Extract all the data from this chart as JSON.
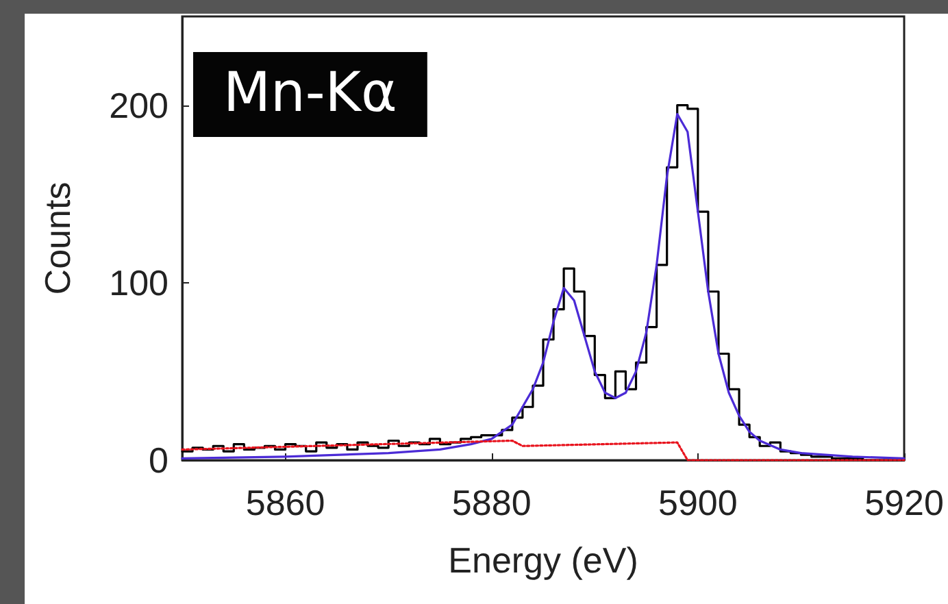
{
  "chart_data": {
    "type": "line",
    "xlabel": "Energy (eV)",
    "ylabel": "Counts",
    "annotations": [
      "Mn-Kα"
    ],
    "xlim": [
      5850,
      5920
    ],
    "xticks": [
      5860,
      5880,
      5900,
      5920
    ],
    "ylim": [
      0,
      250
    ],
    "yticks": [
      0,
      100,
      200
    ],
    "grid": false,
    "series": [
      {
        "type": "step",
        "color": "#000000",
        "line_style": "solid",
        "x": [
          5850,
          5851,
          5852,
          5853,
          5854,
          5855,
          5856,
          5857,
          5858,
          5859,
          5860,
          5861,
          5862,
          5863,
          5864,
          5865,
          5866,
          5867,
          5868,
          5869,
          5870,
          5871,
          5872,
          5873,
          5874,
          5875,
          5876,
          5877,
          5878,
          5879,
          5880,
          5881,
          5882,
          5883,
          5884,
          5885,
          5886,
          5887,
          5888,
          5889,
          5890,
          5891,
          5892,
          5893,
          5894,
          5895,
          5896,
          5897,
          5898,
          5899,
          5900,
          5901,
          5902,
          5903,
          5904,
          5905,
          5906,
          5907,
          5908,
          5909,
          5910,
          5911,
          5912,
          5913,
          5914,
          5915,
          5916,
          5917,
          5918,
          5919,
          5920
        ],
        "values": [
          5,
          7,
          6,
          8,
          5,
          9,
          6,
          7,
          8,
          6,
          9,
          8,
          5,
          10,
          7,
          9,
          6,
          10,
          8,
          7,
          11,
          8,
          10,
          9,
          12,
          9,
          10,
          12,
          13,
          14,
          14,
          17,
          24,
          30,
          42,
          68,
          85,
          108,
          95,
          70,
          48,
          35,
          50,
          40,
          55,
          75,
          110,
          165,
          200,
          198,
          140,
          95,
          60,
          40,
          20,
          13,
          8,
          10,
          5,
          4,
          3,
          2,
          2,
          1,
          1,
          1,
          0,
          0,
          0,
          0,
          0
        ]
      },
      {
        "color": "#4b2bd6",
        "line_style": "solid",
        "x": [
          5850,
          5860,
          5870,
          5875,
          5878,
          5880,
          5882,
          5884,
          5885,
          5886,
          5887,
          5888,
          5889,
          5890,
          5891,
          5892,
          5893,
          5894,
          5895,
          5896,
          5897,
          5898,
          5899,
          5900,
          5901,
          5902,
          5903,
          5904,
          5905,
          5906,
          5908,
          5910,
          5915,
          5920
        ],
        "values": [
          1,
          2,
          4,
          6,
          9,
          12,
          20,
          40,
          55,
          78,
          97,
          90,
          70,
          50,
          38,
          35,
          38,
          50,
          72,
          110,
          160,
          195,
          185,
          140,
          95,
          60,
          38,
          25,
          16,
          11,
          6,
          4,
          2,
          1
        ]
      },
      {
        "color": "#e8141e",
        "line_style": "dotted",
        "x": [
          5850,
          5882,
          5883,
          5898,
          5899,
          5920
        ],
        "values": [
          6,
          11,
          8,
          10,
          0,
          0
        ]
      }
    ]
  }
}
